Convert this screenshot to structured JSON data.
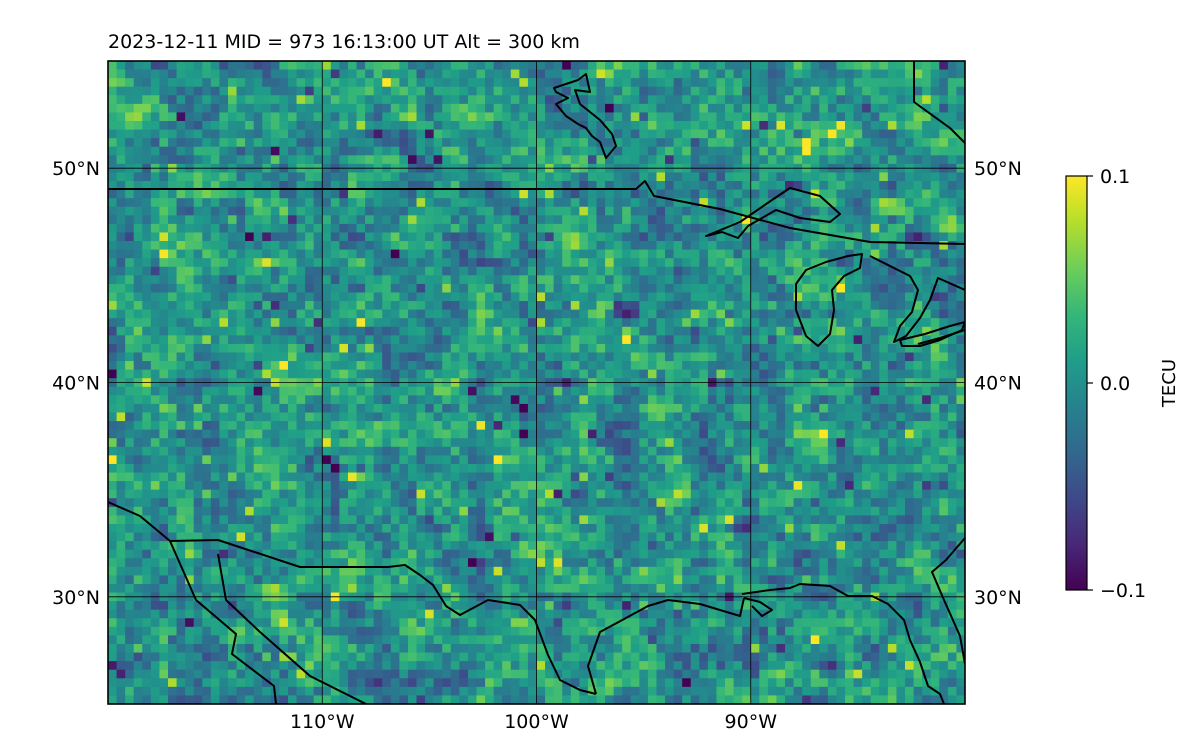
{
  "chart_data": {
    "type": "heatmap",
    "title": "2023-12-11  MID = 973    16:13:00  UT  Alt = 300 km",
    "map_projection": "equirectangular",
    "xlim": [
      -120,
      -80
    ],
    "ylim": [
      25,
      55
    ],
    "gridlines": true,
    "x_ticks": [
      {
        "value": -110,
        "label": "110°W"
      },
      {
        "value": -100,
        "label": "100°W"
      },
      {
        "value": -90,
        "label": "90°W"
      }
    ],
    "y_ticks": [
      {
        "value": 50,
        "label": "50°N"
      },
      {
        "value": 40,
        "label": "40°N"
      },
      {
        "value": 30,
        "label": "30°N"
      }
    ],
    "colorbar": {
      "label": "TECU",
      "colormap": "viridis",
      "range": [
        -0.1,
        0.1
      ],
      "ticks": [
        {
          "value": 0.1,
          "label": "0.1"
        },
        {
          "value": 0.0,
          "label": "0.0"
        },
        {
          "value": -0.1,
          "label": "−0.1"
        }
      ]
    },
    "grid_resolution_deg": 0.4,
    "field": {
      "description": "speckled TEC perturbation field, mostly near 0 with scattered positive (yellow) and negative (purple) cells",
      "hotspots": [
        {
          "lon": -82.5,
          "lat": 47.0,
          "value": -0.1
        },
        {
          "lon": -84.0,
          "lat": 48.5,
          "value": 0.1
        },
        {
          "lon": -81.0,
          "lat": 47.5,
          "value": 0.1
        },
        {
          "lon": -98.5,
          "lat": 46.8,
          "value": 0.1
        },
        {
          "lon": -93.5,
          "lat": 35.0,
          "value": 0.1
        },
        {
          "lon": -86.5,
          "lat": 27.0,
          "value": -0.1
        },
        {
          "lon": -90.5,
          "lat": 33.5,
          "value": -0.1
        },
        {
          "lon": -96.0,
          "lat": 43.5,
          "value": -0.1
        },
        {
          "lon": -112.5,
          "lat": 30.5,
          "value": 0.1
        }
      ]
    },
    "colors": {
      "viridis": [
        "#440154",
        "#482878",
        "#3e4989",
        "#31688e",
        "#26828e",
        "#1f9e89",
        "#35b779",
        "#6ece58",
        "#b5de2b",
        "#fde725"
      ],
      "coastline": "#000000",
      "gridline": "#000000"
    }
  }
}
